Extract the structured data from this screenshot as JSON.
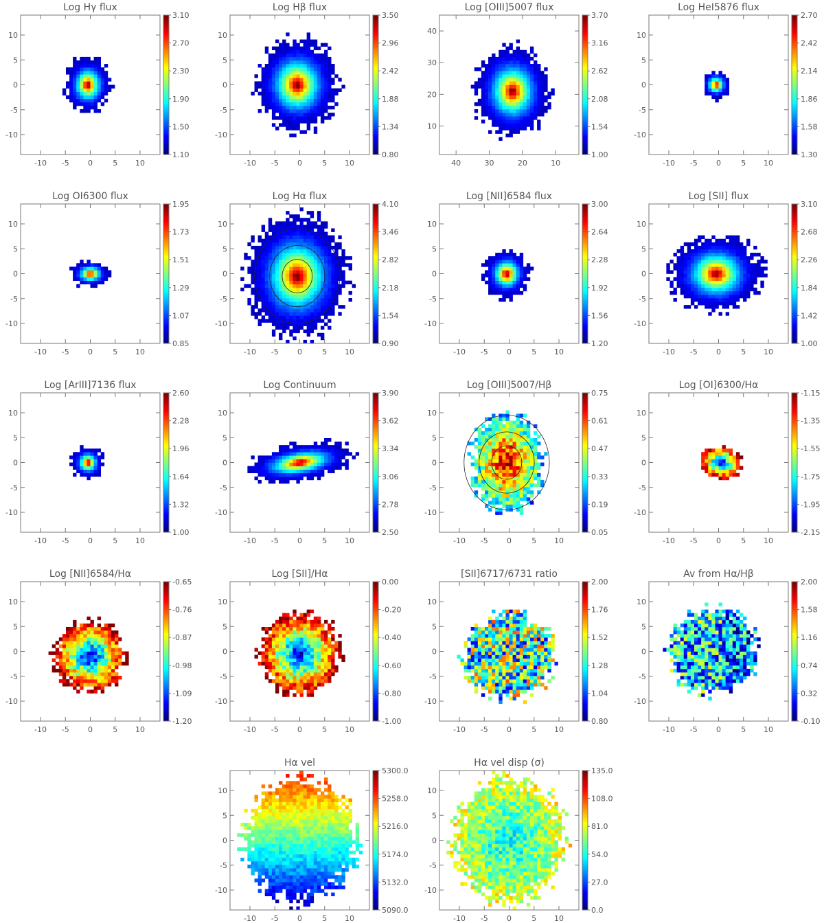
{
  "chart_data": [
    {
      "type": "heatmap",
      "title": "Log Hγ flux",
      "xticks": [
        -10,
        -5,
        0,
        5,
        10
      ],
      "yticks": [
        -10,
        -5,
        0,
        5,
        10
      ],
      "xlim": [
        -14,
        14
      ],
      "ylim": [
        -14,
        14
      ],
      "colorbar_ticks": [
        "1.10",
        "1.50",
        "1.90",
        "2.30",
        "2.70",
        "3.10"
      ],
      "map": {
        "cx": -0.5,
        "cy": 0,
        "rx": 4.5,
        "ry": 5.5,
        "seed": 1,
        "mode": "flux"
      }
    },
    {
      "type": "heatmap",
      "title": "Log Hβ flux",
      "xticks": [
        -10,
        -5,
        0,
        5,
        10
      ],
      "yticks": [
        -10,
        -5,
        0,
        5,
        10
      ],
      "xlim": [
        -14,
        14
      ],
      "ylim": [
        -14,
        14
      ],
      "colorbar_ticks": [
        "0.80",
        "1.34",
        "1.88",
        "2.42",
        "2.96",
        "3.50"
      ],
      "map": {
        "cx": -0.5,
        "cy": 0,
        "rx": 8,
        "ry": 9,
        "seed": 2,
        "mode": "flux"
      }
    },
    {
      "type": "heatmap",
      "title": "Log [OIII]5007 flux",
      "xticks": [
        40,
        30,
        20,
        10
      ],
      "yticks": [
        10,
        20,
        30,
        40
      ],
      "xlim": [
        45,
        3
      ],
      "ylim": [
        1,
        45
      ],
      "colorbar_ticks": [
        "1.00",
        "1.54",
        "2.08",
        "2.62",
        "3.16",
        "3.70"
      ],
      "map": {
        "cx": 23,
        "cy": 21,
        "rx": 11,
        "ry": 14,
        "seed": 3,
        "mode": "flux"
      }
    },
    {
      "type": "heatmap",
      "title": "Log HeI5876 flux",
      "xticks": [
        -10,
        -5,
        0,
        5,
        10
      ],
      "yticks": [
        -10,
        -5,
        0,
        5,
        10
      ],
      "xlim": [
        -14,
        14
      ],
      "ylim": [
        -14,
        14
      ],
      "colorbar_ticks": [
        "1.30",
        "1.58",
        "1.86",
        "2.14",
        "2.42",
        "2.70"
      ],
      "map": {
        "cx": -0.5,
        "cy": 0,
        "rx": 2.8,
        "ry": 2.8,
        "seed": 4,
        "mode": "flux"
      }
    },
    {
      "type": "heatmap",
      "title": "Log OI6300 flux",
      "xticks": [
        -10,
        -5,
        0,
        5,
        10
      ],
      "yticks": [
        -10,
        -5,
        0,
        5,
        10
      ],
      "xlim": [
        -14,
        14
      ],
      "ylim": [
        -14,
        14
      ],
      "colorbar_ticks": [
        "0.85",
        "1.07",
        "1.29",
        "1.51",
        "1.73",
        "1.95"
      ],
      "map": {
        "cx": 0,
        "cy": 0,
        "rx": 3.8,
        "ry": 2.6,
        "seed": 5,
        "mode": "flux"
      }
    },
    {
      "type": "heatmap",
      "title": "Log Hα flux",
      "xticks": [
        -10,
        -5,
        0,
        5,
        10
      ],
      "yticks": [
        -10,
        -5,
        0,
        5,
        10
      ],
      "xlim": [
        -14,
        14
      ],
      "ylim": [
        -14,
        14
      ],
      "colorbar_ticks": [
        "0.90",
        "1.54",
        "2.18",
        "2.82",
        "3.46",
        "4.10"
      ],
      "map": {
        "cx": -0.5,
        "cy": -0.5,
        "rx": 10,
        "ry": 12,
        "seed": 6,
        "mode": "flux",
        "contours": true
      }
    },
    {
      "type": "heatmap",
      "title": "Log [NII]6584 flux",
      "xticks": [
        -10,
        -5,
        0,
        5,
        10
      ],
      "yticks": [
        -10,
        -5,
        0,
        5,
        10
      ],
      "xlim": [
        -14,
        14
      ],
      "ylim": [
        -14,
        14
      ],
      "colorbar_ticks": [
        "1.20",
        "1.56",
        "1.92",
        "2.28",
        "2.64",
        "3.00"
      ],
      "map": {
        "cx": -0.5,
        "cy": 0,
        "rx": 4.5,
        "ry": 4.8,
        "seed": 7,
        "mode": "flux"
      }
    },
    {
      "type": "heatmap",
      "title": "Log [SII] flux",
      "xticks": [
        -10,
        -5,
        0,
        5,
        10
      ],
      "yticks": [
        -10,
        -5,
        0,
        5,
        10
      ],
      "xlim": [
        -14,
        14
      ],
      "ylim": [
        -14,
        14
      ],
      "colorbar_ticks": [
        "1.00",
        "1.42",
        "1.84",
        "2.26",
        "2.68",
        "3.10"
      ],
      "map": {
        "cx": -0.5,
        "cy": 0,
        "rx": 9,
        "ry": 7.5,
        "seed": 8,
        "mode": "flux"
      }
    },
    {
      "type": "heatmap",
      "title": "Log [ArIII]7136 flux",
      "xticks": [
        -10,
        -5,
        0,
        5,
        10
      ],
      "yticks": [
        -10,
        -5,
        0,
        5,
        10
      ],
      "xlim": [
        -14,
        14
      ],
      "ylim": [
        -14,
        14
      ],
      "colorbar_ticks": [
        "1.00",
        "1.32",
        "1.64",
        "1.96",
        "2.28",
        "2.60"
      ],
      "map": {
        "cx": -0.5,
        "cy": 0,
        "rx": 3.2,
        "ry": 3.2,
        "seed": 9,
        "mode": "flux"
      }
    },
    {
      "type": "heatmap",
      "title": "Log Continuum",
      "xticks": [
        -10,
        -5,
        0,
        5,
        10
      ],
      "yticks": [
        -10,
        -5,
        0,
        5,
        10
      ],
      "xlim": [
        -14,
        14
      ],
      "ylim": [
        -14,
        14
      ],
      "colorbar_ticks": [
        "2.50",
        "2.78",
        "3.06",
        "3.34",
        "3.62",
        "3.90"
      ],
      "map": {
        "cx": 0,
        "cy": 0,
        "rx": 11,
        "ry": 5.5,
        "seed": 10,
        "mode": "flux",
        "tilt": 0.5
      }
    },
    {
      "type": "heatmap",
      "title": "Log [OIII]5007/Hβ",
      "xticks": [
        -10,
        -5,
        0,
        5,
        10
      ],
      "yticks": [
        -10,
        -5,
        0,
        5,
        10
      ],
      "xlim": [
        -14,
        14
      ],
      "ylim": [
        -14,
        14
      ],
      "colorbar_ticks": [
        "0.05",
        "0.19",
        "0.33",
        "0.47",
        "0.61",
        "0.75"
      ],
      "map": {
        "cx": -0.5,
        "cy": 0,
        "rx": 7,
        "ry": 9.5,
        "seed": 11,
        "mode": "ratio_high",
        "contours": true
      }
    },
    {
      "type": "heatmap",
      "title": "Log [OI]6300/Hα",
      "xticks": [
        -10,
        -5,
        0,
        5,
        10
      ],
      "yticks": [
        -10,
        -5,
        0,
        5,
        10
      ],
      "xlim": [
        -14,
        14
      ],
      "ylim": [
        -14,
        14
      ],
      "colorbar_ticks": [
        "-2.15",
        "-1.95",
        "-1.75",
        "-1.55",
        "-1.35",
        "-1.15"
      ],
      "map": {
        "cx": 0.5,
        "cy": 0,
        "rx": 4,
        "ry": 3.2,
        "seed": 12,
        "mode": "ratio_low"
      }
    },
    {
      "type": "heatmap",
      "title": "Log [NII]6584/Hα",
      "xticks": [
        -10,
        -5,
        0,
        5,
        10
      ],
      "yticks": [
        -10,
        -5,
        0,
        5,
        10
      ],
      "xlim": [
        -14,
        14
      ],
      "ylim": [
        -14,
        14
      ],
      "colorbar_ticks": [
        "-1.20",
        "-1.09",
        "-0.98",
        "-0.87",
        "-0.76",
        "-0.65"
      ],
      "map": {
        "cx": 0,
        "cy": -1,
        "rx": 7,
        "ry": 7,
        "seed": 13,
        "mode": "ratio_low"
      }
    },
    {
      "type": "heatmap",
      "title": "Log [SII]/Hα",
      "xticks": [
        -10,
        -5,
        0,
        5,
        10
      ],
      "yticks": [
        -10,
        -5,
        0,
        5,
        10
      ],
      "xlim": [
        -14,
        14
      ],
      "ylim": [
        -14,
        14
      ],
      "colorbar_ticks": [
        "-1.00",
        "-0.80",
        "-0.60",
        "-0.40",
        "-0.20",
        "0.00"
      ],
      "map": {
        "cx": 0,
        "cy": -0.5,
        "rx": 8,
        "ry": 8,
        "seed": 14,
        "mode": "ratio_low"
      }
    },
    {
      "type": "heatmap",
      "title": "[SII]6717/6731 ratio",
      "xticks": [
        -10,
        -5,
        0,
        5,
        10
      ],
      "yticks": [
        -10,
        -5,
        0,
        5,
        10
      ],
      "xlim": [
        -14,
        14
      ],
      "ylim": [
        -14,
        14
      ],
      "colorbar_ticks": [
        "0.80",
        "1.04",
        "1.28",
        "1.52",
        "1.76",
        "2.00"
      ],
      "map": {
        "cx": 0,
        "cy": -1,
        "rx": 9,
        "ry": 8.5,
        "seed": 15,
        "mode": "noise_mid"
      }
    },
    {
      "type": "heatmap",
      "title": "Av from Hα/Hβ",
      "xticks": [
        -10,
        -5,
        0,
        5,
        10
      ],
      "yticks": [
        -10,
        -5,
        0,
        5,
        10
      ],
      "xlim": [
        -14,
        14
      ],
      "ylim": [
        -14,
        14
      ],
      "colorbar_ticks": [
        "-0.10",
        "0.32",
        "0.74",
        "1.16",
        "1.58",
        "2.00"
      ],
      "map": {
        "cx": -1,
        "cy": 0,
        "rx": 8.5,
        "ry": 8.5,
        "seed": 16,
        "mode": "noise_low"
      }
    },
    {
      "type": "heatmap",
      "title": "Hα vel",
      "xticks": [
        -10,
        -5,
        0,
        5,
        10
      ],
      "yticks": [
        -10,
        -5,
        0,
        5,
        10
      ],
      "xlim": [
        -14,
        14
      ],
      "ylim": [
        -14,
        14
      ],
      "colorbar_ticks": [
        "5090.0",
        "5132.0",
        "5174.0",
        "5216.0",
        "5258.0",
        "5300.0"
      ],
      "map": {
        "cx": 0,
        "cy": 0,
        "rx": 11,
        "ry": 12,
        "seed": 17,
        "mode": "velocity"
      }
    },
    {
      "type": "heatmap",
      "title": "Hα vel disp (σ)",
      "xticks": [
        -10,
        -5,
        0,
        5,
        10
      ],
      "yticks": [
        -10,
        -5,
        0,
        5,
        10
      ],
      "xlim": [
        -14,
        14
      ],
      "ylim": [
        -14,
        14
      ],
      "colorbar_ticks": [
        "0.0",
        "27.0",
        "54.0",
        "81.0",
        "108.0",
        "135.0"
      ],
      "map": {
        "cx": 0,
        "cy": 0,
        "rx": 11,
        "ry": 12,
        "seed": 18,
        "mode": "dispersion"
      }
    }
  ]
}
